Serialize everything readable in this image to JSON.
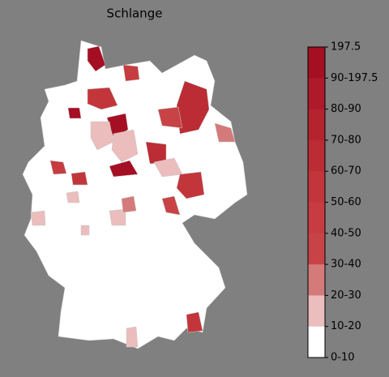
{
  "title": "Schlange",
  "colorbar": {
    "labels": [
      "197.5",
      "90-197.5",
      "80-90",
      "70-80",
      "60-70",
      "50-60",
      "40-50",
      "30-40",
      "20-30",
      "10-20",
      "0-10"
    ],
    "colors": [
      "#a50f23",
      "#ae1a2a",
      "#b5232f",
      "#bb2c34",
      "#c2363b",
      "#c63c40",
      "#c84345",
      "#d47a7a",
      "#ebbdbd",
      "#ffffff"
    ]
  }
}
